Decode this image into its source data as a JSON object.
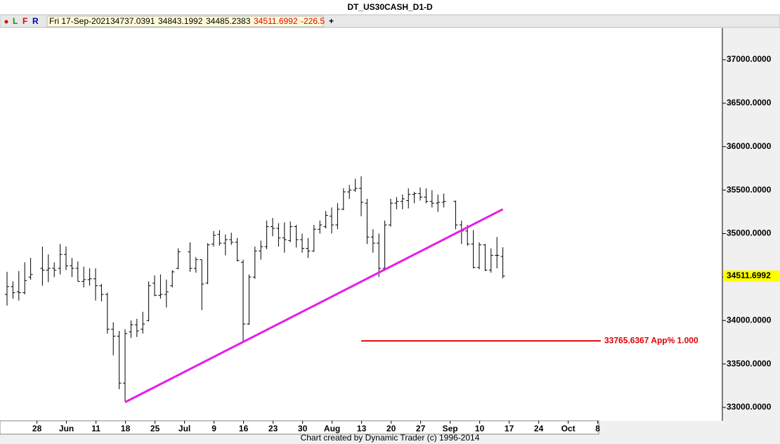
{
  "header": {
    "title": "DT_US30CASH_D1-D",
    "buttons": [
      "L",
      "F",
      "R"
    ],
    "date": "Fri 17-Sep-2021",
    "change": "-226.5"
  },
  "footer": "Chart created by Dynamic Trader  (c) 1996-2014",
  "chart_data": {
    "type": "ohlc",
    "color": "#000000",
    "categories": [
      null,
      null,
      null,
      null,
      "28",
      null,
      null,
      null,
      null,
      "Jun",
      null,
      null,
      null,
      null,
      "11",
      null,
      null,
      null,
      null,
      "18",
      null,
      null,
      null,
      null,
      "25",
      null,
      null,
      null,
      null,
      "Jul",
      null,
      null,
      null,
      null,
      "9",
      null,
      null,
      null,
      null,
      "16",
      null,
      null,
      null,
      null,
      "23",
      null,
      null,
      null,
      null,
      "30",
      null,
      null,
      null,
      null,
      "Aug",
      null,
      null,
      null,
      null,
      "13",
      null,
      null,
      null,
      null,
      "20",
      null,
      null,
      null,
      null,
      "27",
      null,
      null,
      null,
      null,
      "Sep",
      null,
      null,
      null,
      null,
      "10",
      null,
      null,
      null,
      null,
      "17",
      null,
      null,
      null,
      null,
      "24",
      null,
      null,
      null,
      null,
      "Oct",
      null,
      null,
      null,
      null,
      "8"
    ],
    "open": [
      34300,
      34390,
      34330,
      34320,
      34500,
      null,
      34600,
      34580,
      34600,
      34600,
      34760,
      34630,
      34600,
      34450,
      34470,
      34480,
      34400,
      34300,
      33900,
      33820,
      33280,
      33870,
      33950,
      33900,
      34000,
      34430,
      34290,
      34300,
      34400,
      34600,
      null,
      34790,
      34600,
      34700,
      34430,
      34880,
      34990,
      34890,
      34930,
      34900,
      34670,
      33960,
      34500,
      34800,
      34850,
      35080,
      35060,
      34950,
      34920,
      35080,
      34930,
      34830,
      34800,
      35050,
      35080,
      35200,
      35100,
      35280,
      35480,
      35500,
      35520,
      35350,
      34960,
      34890,
      34600,
      35100,
      35350,
      35370,
      35380,
      35450,
      35460,
      35420,
      35370,
      35350,
      35360,
      null,
      35370,
      35100,
      35030,
      34880,
      34610,
      34870,
      34580,
      34750,
      34737.0391,
      null,
      null,
      null,
      null,
      null,
      null,
      null,
      null,
      null,
      null,
      null,
      null,
      null,
      null,
      null
    ],
    "high": [
      34560,
      34450,
      34570,
      34670,
      34720,
      null,
      34850,
      34760,
      34670,
      34880,
      34850,
      34720,
      34680,
      34620,
      34600,
      34600,
      34420,
      34320,
      33980,
      33880,
      33900,
      34000,
      34020,
      34100,
      34450,
      34520,
      34530,
      34470,
      34580,
      34830,
      null,
      34900,
      34730,
      34700,
      34890,
      35030,
      35040,
      34990,
      35010,
      34950,
      34700,
      34530,
      34850,
      34920,
      35150,
      35180,
      35120,
      35130,
      35140,
      35100,
      35000,
      34950,
      35100,
      35150,
      35260,
      35300,
      35350,
      35520,
      35560,
      35630,
      35660,
      35400,
      35050,
      35000,
      35150,
      35400,
      35420,
      35450,
      35520,
      35480,
      35530,
      35520,
      35500,
      35450,
      35460,
      null,
      35380,
      35150,
      35100,
      35040,
      34900,
      34880,
      34830,
      34960,
      34843.1992,
      null,
      null,
      null,
      null,
      null,
      null,
      null,
      null,
      null,
      null,
      null,
      null,
      null,
      null,
      null
    ],
    "low": [
      34170,
      34250,
      34230,
      34300,
      34470,
      null,
      34400,
      34440,
      34500,
      34530,
      34580,
      34500,
      34450,
      34380,
      34400,
      34230,
      34220,
      33850,
      33600,
      33210,
      33070,
      33800,
      33810,
      33850,
      33990,
      34280,
      34250,
      34150,
      34380,
      34590,
      null,
      34560,
      34550,
      34120,
      34420,
      34850,
      34860,
      34750,
      34870,
      34680,
      33760,
      33950,
      34480,
      34700,
      34820,
      34970,
      34850,
      34780,
      34900,
      34840,
      34780,
      34720,
      34790,
      35000,
      35060,
      35000,
      35050,
      35270,
      35400,
      35480,
      35200,
      34880,
      34780,
      34500,
      34590,
      35080,
      35280,
      35280,
      35290,
      35350,
      35380,
      35350,
      35300,
      35250,
      35300,
      null,
      35050,
      34880,
      34860,
      34600,
      34590,
      34570,
      34550,
      34600,
      34485.2383,
      null,
      null,
      null,
      null,
      null,
      null,
      null,
      null,
      null,
      null,
      null,
      null,
      null,
      null,
      null
    ],
    "close": [
      34390,
      34320,
      34320,
      34460,
      34530,
      null,
      34580,
      34600,
      34580,
      34760,
      34630,
      34600,
      34450,
      34470,
      34480,
      34400,
      34300,
      33900,
      33820,
      33280,
      33850,
      33950,
      33880,
      33960,
      34400,
      34290,
      34300,
      34330,
      34560,
      34790,
      null,
      34600,
      34700,
      34420,
      34870,
      34980,
      34890,
      34930,
      34900,
      34690,
      33960,
      34500,
      34800,
      34850,
      35080,
      35060,
      34950,
      34930,
      35080,
      34930,
      34830,
      34800,
      35050,
      35100,
      35210,
      35100,
      35280,
      35480,
      35500,
      35520,
      35360,
      34960,
      34890,
      34600,
      35100,
      35350,
      35370,
      35400,
      35450,
      35460,
      35420,
      35370,
      35350,
      35360,
      35370,
      null,
      35100,
      35030,
      34880,
      34610,
      34870,
      34580,
      34750,
      34750,
      34511.6992,
      null,
      null,
      null,
      null,
      null,
      null,
      null,
      null,
      null,
      null,
      null,
      null,
      null,
      null,
      null
    ],
    "ylim": [
      32846,
      37364
    ],
    "yticks": [
      {
        "value": 33000,
        "label": "33000.0000"
      },
      {
        "value": 33500,
        "label": "33500.0000"
      },
      {
        "value": 34000,
        "label": "34000.0000"
      },
      {
        "value": 34500,
        "label": "34500.0000"
      },
      {
        "value": 35000,
        "label": "35000.0000"
      },
      {
        "value": 35500,
        "label": "35500.0000"
      },
      {
        "value": 36000,
        "label": "36000.0000"
      },
      {
        "value": 36500,
        "label": "36500.0000"
      },
      {
        "value": 37000,
        "label": "37000.0000"
      }
    ],
    "trendline": {
      "x_index": [
        20,
        84
      ],
      "values": [
        33060,
        35280
      ],
      "color": "#e61ee6"
    },
    "level": {
      "start_index": 60,
      "value": 33765.6367,
      "label": "33765.6367 App% 1.000",
      "color": "#e00000"
    },
    "last_price_color": "#ffff00"
  }
}
